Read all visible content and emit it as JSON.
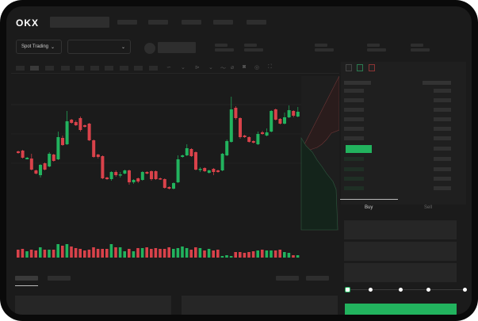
{
  "header": {
    "logo": "OKX"
  },
  "toolbar": {
    "market_selector": "Spot Trading",
    "market_chevron": "⌄",
    "pair_chevron": "⌄"
  },
  "order_panel": {
    "tabs": [
      "Buy",
      "Sell"
    ],
    "active_tab": "Buy",
    "slider_percent": 0,
    "submit_color": "#22b35e"
  },
  "colors": {
    "up": "#22b35e",
    "down": "#d9424a",
    "background": "#1b1b1b"
  },
  "chart_data": {
    "type": "candlestick",
    "candles": [
      [
        67,
        65,
        68,
        64
      ],
      [
        68,
        59,
        69,
        58
      ],
      [
        57,
        59,
        60,
        57
      ],
      [
        58,
        44,
        64,
        43
      ],
      [
        43,
        39,
        44,
        38
      ],
      [
        37,
        50,
        51,
        34
      ],
      [
        52,
        44,
        53,
        43
      ],
      [
        48,
        64,
        66,
        47
      ],
      [
        63,
        55,
        64,
        54
      ],
      [
        57,
        85,
        92,
        56
      ],
      [
        84,
        75,
        87,
        74
      ],
      [
        76,
        105,
        118,
        75
      ],
      [
        107,
        103,
        108,
        102
      ],
      [
        104,
        100,
        106,
        99
      ],
      [
        109,
        94,
        111,
        92
      ],
      [
        100,
        98,
        101,
        97
      ],
      [
        102,
        81,
        103,
        80
      ],
      [
        81,
        60,
        82,
        59
      ],
      [
        63,
        60,
        64,
        58
      ],
      [
        61,
        33,
        62,
        32
      ],
      [
        34,
        32,
        35,
        31
      ],
      [
        32,
        41,
        42,
        30
      ],
      [
        41,
        37,
        43,
        35
      ],
      [
        37,
        38,
        41,
        34
      ],
      [
        39,
        43,
        44,
        38
      ],
      [
        43,
        28,
        44,
        25
      ],
      [
        28,
        31,
        32,
        26
      ],
      [
        33,
        29,
        34,
        27
      ],
      [
        31,
        41,
        42,
        30
      ],
      [
        41,
        39,
        42,
        38
      ],
      [
        42,
        32,
        43,
        30
      ],
      [
        42,
        32,
        43,
        31
      ],
      [
        33,
        32,
        34,
        31
      ],
      [
        32,
        21,
        33,
        20
      ],
      [
        22,
        20,
        23,
        19
      ],
      [
        20,
        27,
        28,
        19
      ],
      [
        28,
        57,
        62,
        27
      ],
      [
        60,
        62,
        63,
        59
      ],
      [
        62,
        71,
        76,
        61
      ],
      [
        70,
        61,
        71,
        60
      ],
      [
        66,
        44,
        67,
        43
      ],
      [
        44,
        45,
        47,
        41
      ],
      [
        46,
        42,
        47,
        41
      ],
      [
        40,
        43,
        44,
        39
      ],
      [
        45,
        41,
        46,
        37
      ],
      [
        43,
        41,
        44,
        40
      ],
      [
        43,
        64,
        65,
        42
      ],
      [
        62,
        80,
        82,
        61
      ],
      [
        79,
        120,
        136,
        78
      ],
      [
        122,
        109,
        124,
        107
      ],
      [
        109,
        85,
        110,
        83
      ],
      [
        87,
        85,
        88,
        84
      ],
      [
        85,
        79,
        86,
        78
      ],
      [
        80,
        78,
        81,
        77
      ],
      [
        76,
        89,
        92,
        75
      ],
      [
        91,
        89,
        93,
        88
      ],
      [
        87,
        91,
        96,
        86
      ],
      [
        92,
        118,
        119,
        91
      ],
      [
        120,
        107,
        121,
        106
      ],
      [
        108,
        102,
        109,
        101
      ],
      [
        102,
        110,
        116,
        101
      ],
      [
        110,
        119,
        125,
        109
      ],
      [
        118,
        112,
        119,
        110
      ],
      [
        111,
        117,
        123,
        110
      ]
    ],
    "volumes": [
      10,
      11,
      8,
      10,
      9,
      13,
      10,
      10,
      10,
      17,
      15,
      17,
      14,
      12,
      11,
      9,
      10,
      13,
      11,
      11,
      11,
      17,
      13,
      13,
      8,
      11,
      8,
      12,
      12,
      13,
      11,
      12,
      11,
      11,
      13,
      11,
      12,
      14,
      12,
      10,
      13,
      12,
      9,
      11,
      9,
      10,
      2,
      3,
      2,
      7,
      7,
      6,
      7,
      8,
      9,
      10,
      9,
      9,
      9,
      10,
      7,
      6,
      3,
      3
    ]
  }
}
